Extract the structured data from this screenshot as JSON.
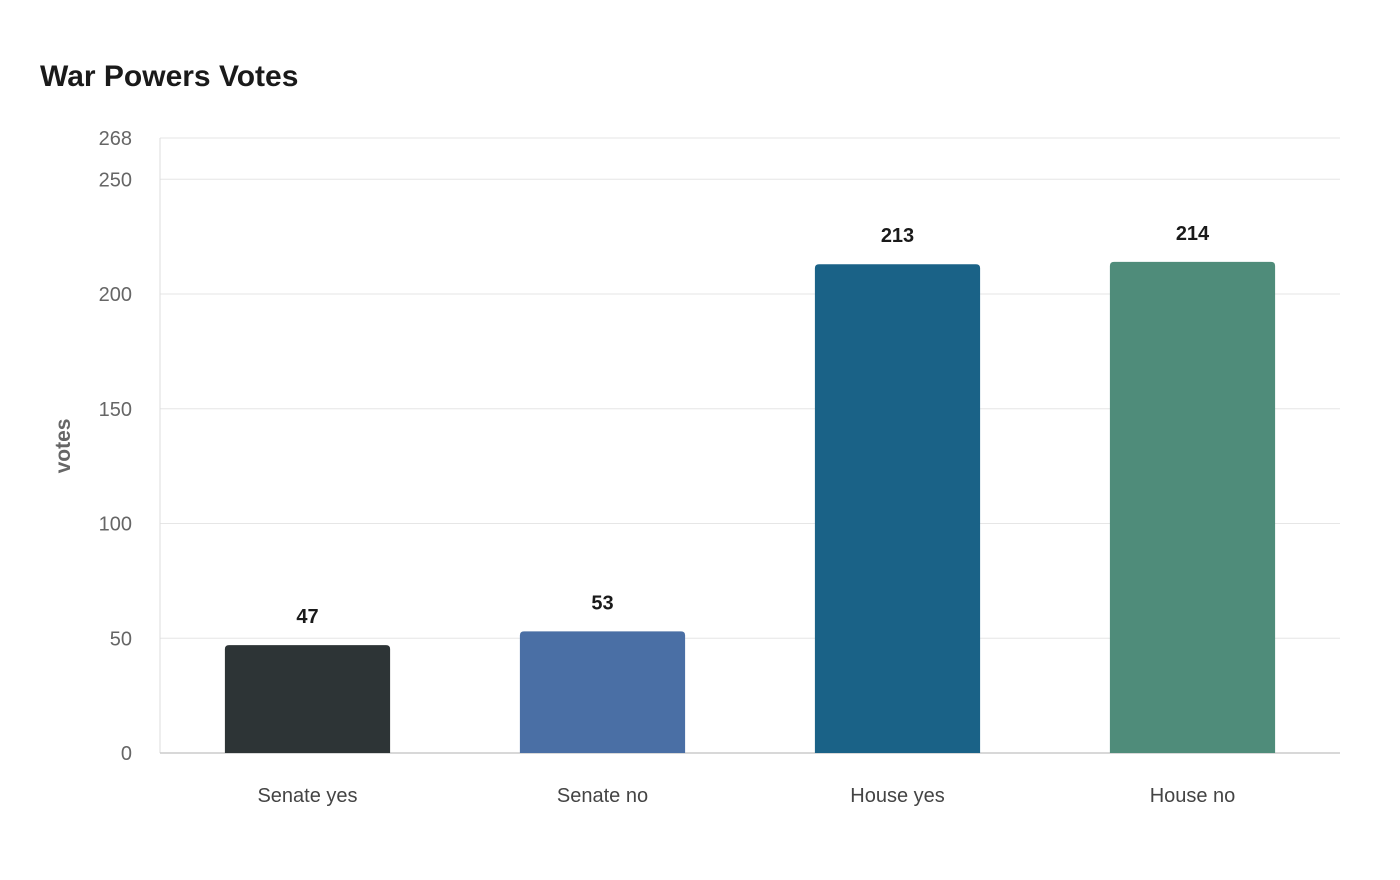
{
  "chart_data": {
    "type": "bar",
    "title": "War Powers Votes",
    "xlabel": "",
    "ylabel": "votes",
    "categories": [
      "Senate yes",
      "Senate no",
      "House yes",
      "House no"
    ],
    "values": [
      47,
      53,
      213,
      214
    ],
    "colors": [
      "#2d3436",
      "#4a6fa5",
      "#1a6287",
      "#4f8c7a"
    ],
    "ylim": [
      0,
      268
    ],
    "yticks": [
      0,
      50,
      100,
      150,
      200,
      250,
      268
    ],
    "grid": true,
    "legend": "none"
  }
}
